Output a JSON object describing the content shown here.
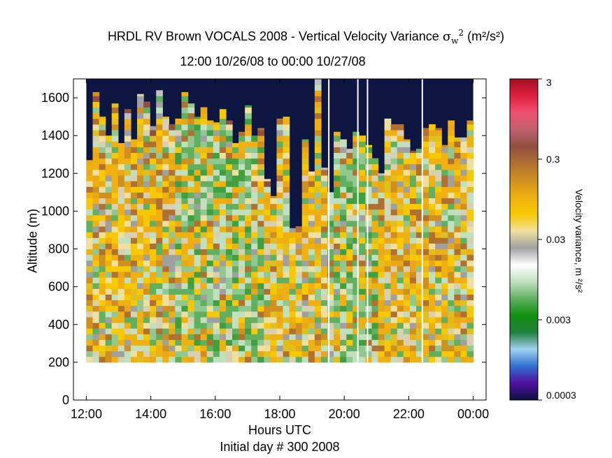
{
  "chart_data": {
    "type": "heatmap",
    "title": "HRDL RV Brown VOCALS 2008 - Vertical Velocity Variance",
    "title_symbol": "σ",
    "title_symbol_sup": "2",
    "title_symbol_sub": "w",
    "title_units": "(m²/s²)",
    "subtitle": "12:00 10/26/08 to 00:00 10/27/08",
    "xlabel": "Hours UTC",
    "xlabel_sub": "Initial day # 300  2008",
    "ylabel": "Altitude (m)",
    "colorbar_label": "Velocity variance, m ²/s²",
    "x_ticks": [
      "12:00",
      "14:00",
      "16:00",
      "18:00",
      "20:00",
      "22:00",
      "00:00"
    ],
    "x_tick_hours": [
      12,
      14,
      16,
      18,
      20,
      22,
      24
    ],
    "xlim_hours": [
      11.6,
      24.4
    ],
    "y_ticks": [
      0,
      200,
      400,
      600,
      800,
      1000,
      1200,
      1400,
      1600
    ],
    "ylim": [
      0,
      1700
    ],
    "colorbar_ticks": [
      "3",
      "0.3",
      "0.03",
      "0.003",
      "0.0003"
    ],
    "colorbar_tick_values": [
      3,
      0.3,
      0.03,
      0.003,
      0.0003
    ],
    "colorbar_log_scale": true,
    "colorbar_colors": [
      "#0a1040",
      "#5010a0",
      "#3070d0",
      "#a0d0f0",
      "#208040",
      "#109010",
      "#60b060",
      "#c0e0c0",
      "#ffffff",
      "#a0a0a0",
      "#f0e0a0",
      "#f8c800",
      "#f0b010",
      "#d09020",
      "#b07030",
      "#905040",
      "#c06070",
      "#f05070",
      "#e02040",
      "#a01020"
    ],
    "background_color": "#0c1640",
    "data_altitude_range_m": [
      200,
      1700
    ],
    "time_start_hour": 12.0,
    "time_end_hour": 24.0,
    "profile_interval_min": 10,
    "column_top_altitudes_m": [
      1270,
      1630,
      1500,
      1400,
      1570,
      1360,
      1540,
      1380,
      1620,
      1580,
      1450,
      1640,
      1500,
      1460,
      1490,
      1630,
      1570,
      1500,
      1550,
      1480,
      1470,
      1540,
      1480,
      1360,
      1420,
      1560,
      1400,
      1440,
      1170,
      1080,
      1490,
      1500,
      910,
      920,
      1380,
      1210,
      1700,
      1230,
      1100,
      1420,
      1380,
      1330,
      1420,
      1400,
      1350,
      1280,
      1200,
      1490,
      1460,
      1460,
      1380,
      1320,
      1330,
      1440,
      1460,
      1440,
      1350,
      1480,
      1390,
      1390,
      1480
    ],
    "missing_data_hours": [
      19.5,
      20.4,
      20.7,
      22.4
    ],
    "notes": "Per-cell variance values are estimated by colour"
  }
}
